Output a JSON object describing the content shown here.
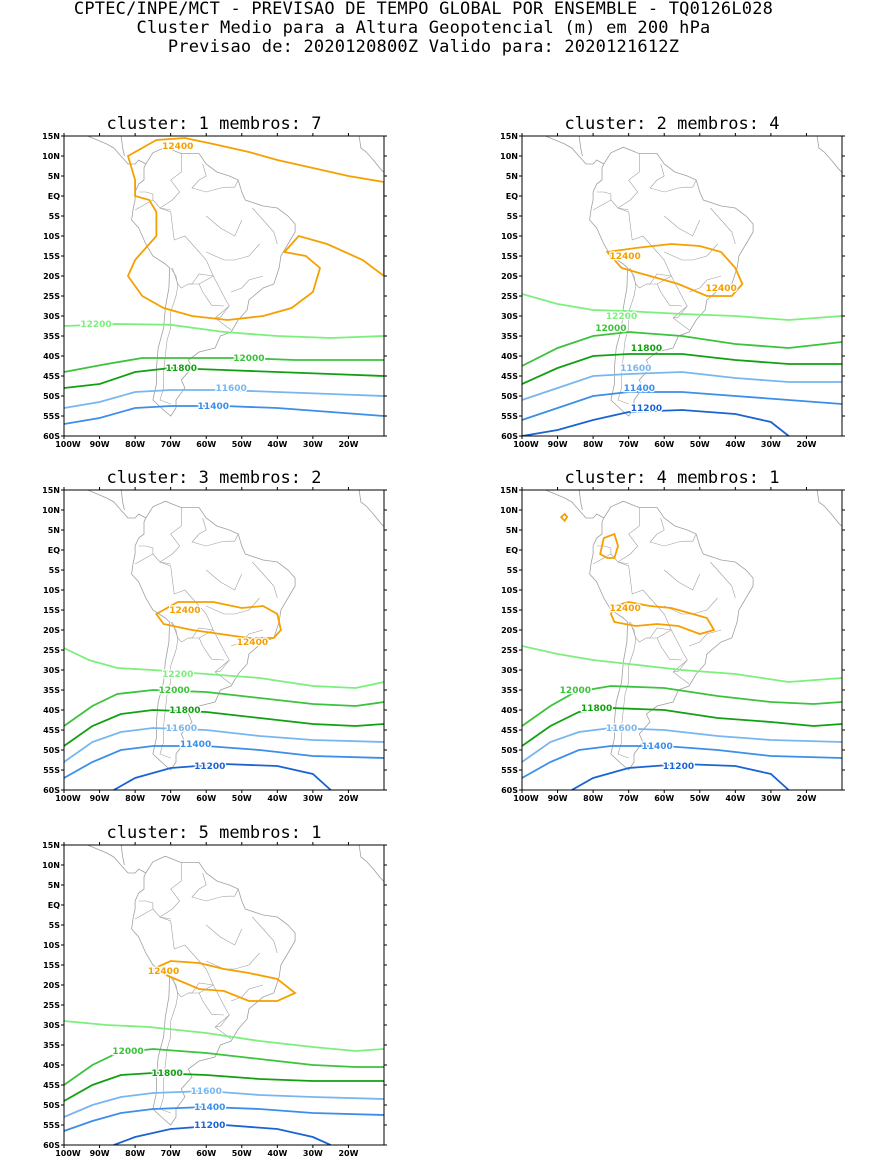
{
  "header": {
    "line1": "CPTEC/INPE/MCT - PREVISAO DE TEMPO GLOBAL POR ENSEMBLE - TQ0126L028",
    "line2": "Cluster Medio para a Altura Geopotencial (m) em 200 hPa",
    "line3": "Previsao de: 2020120800Z   Valido para: 2020121612Z"
  },
  "axes": {
    "lat_labels": [
      "15N",
      "10N",
      "5N",
      "EQ",
      "5S",
      "10S",
      "15S",
      "20S",
      "25S",
      "30S",
      "35S",
      "40S",
      "45S",
      "50S",
      "55S",
      "60S"
    ],
    "lon_labels": [
      "100W",
      "90W",
      "80W",
      "70W",
      "60W",
      "50W",
      "40W",
      "30W",
      "20W"
    ]
  },
  "colors": {
    "c12400": "#f5a000",
    "c12200": "#7cef7c",
    "c12000": "#3cc23c",
    "c11800": "#12a012",
    "c11600": "#78b6f0",
    "c11400": "#3c8ee8",
    "c11200": "#1a64d2",
    "coast": "#a0a0a0"
  },
  "panels": [
    {
      "title": "cluster: 1   membros: 7",
      "contours": [
        {
          "value": "12400",
          "level": "12400"
        },
        {
          "value": "12200",
          "level": "12200"
        },
        {
          "value": "12000",
          "level": "12000"
        },
        {
          "value": "11800",
          "level": "11800"
        },
        {
          "value": "11600",
          "level": "11600"
        },
        {
          "value": "11400",
          "level": "11400"
        }
      ]
    },
    {
      "title": "cluster: 2   membros: 4",
      "contours": [
        {
          "value": "12400",
          "level": "12400"
        },
        {
          "value": "12200",
          "level": "12200"
        },
        {
          "value": "12000",
          "level": "12000"
        },
        {
          "value": "11800",
          "level": "11800"
        },
        {
          "value": "11600",
          "level": "11600"
        },
        {
          "value": "11400",
          "level": "11400"
        },
        {
          "value": "11200",
          "level": "11200"
        }
      ]
    },
    {
      "title": "cluster: 3   membros: 2",
      "contours": [
        {
          "value": "12400",
          "level": "12400"
        },
        {
          "value": "12200",
          "level": "12200"
        },
        {
          "value": "12000",
          "level": "12000"
        },
        {
          "value": "11800",
          "level": "11800"
        },
        {
          "value": "11600",
          "level": "11600"
        },
        {
          "value": "11400",
          "level": "11400"
        },
        {
          "value": "11200",
          "level": "11200"
        }
      ]
    },
    {
      "title": "cluster: 4   membros: 1",
      "contours": [
        {
          "value": "12400",
          "level": "12400"
        },
        {
          "value": "12000",
          "level": "12000"
        },
        {
          "value": "11800",
          "level": "11800"
        },
        {
          "value": "11600",
          "level": "11600"
        },
        {
          "value": "11400",
          "level": "11400"
        },
        {
          "value": "11200",
          "level": "11200"
        }
      ]
    },
    {
      "title": "cluster: 5   membros: 1",
      "contours": [
        {
          "value": "12400",
          "level": "12400"
        },
        {
          "value": "12000",
          "level": "12000"
        },
        {
          "value": "11800",
          "level": "11800"
        },
        {
          "value": "11600",
          "level": "11600"
        },
        {
          "value": "11400",
          "level": "11400"
        },
        {
          "value": "11200",
          "level": "11200"
        }
      ]
    }
  ]
}
